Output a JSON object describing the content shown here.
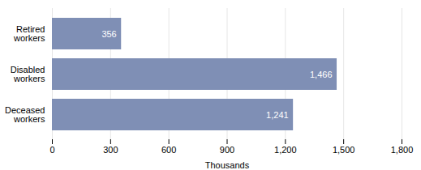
{
  "chart_data": {
    "type": "bar",
    "orientation": "horizontal",
    "categories": [
      "Retired\nworkers",
      "Disabled\nworkers",
      "Deceased\nworkers"
    ],
    "values": [
      356,
      1466,
      1241
    ],
    "value_labels": [
      "356",
      "1,466",
      "1,241"
    ],
    "data_labels": true,
    "color": "#7f8fb5",
    "xlabel": "Thousands",
    "xlim": [
      0,
      1800
    ],
    "xticks": [
      0,
      300,
      600,
      900,
      {
        "value": 1200,
        "label": "1,200"
      },
      {
        "value": 1500,
        "label": "1,500"
      },
      {
        "value": 1800,
        "label": "1,800"
      }
    ],
    "grid": true
  }
}
